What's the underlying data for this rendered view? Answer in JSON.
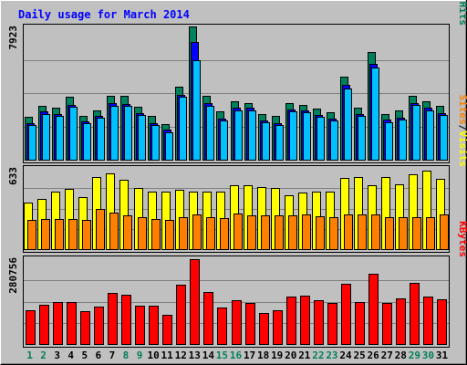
{
  "chart_data": {
    "type": "bar",
    "title": "Daily usage for March 2014",
    "categories": [
      "1",
      "2",
      "3",
      "4",
      "5",
      "6",
      "7",
      "8",
      "9",
      "10",
      "11",
      "12",
      "13",
      "14",
      "15",
      "16",
      "17",
      "18",
      "19",
      "20",
      "21",
      "22",
      "23",
      "24",
      "25",
      "26",
      "27",
      "28",
      "29",
      "30",
      "31"
    ],
    "weekend_days": [
      "1",
      "2",
      "8",
      "9",
      "15",
      "16",
      "22",
      "23",
      "29",
      "30"
    ],
    "panels": [
      {
        "id": "requests",
        "ymax_label": "7923",
        "ylim": [
          0,
          7923
        ],
        "label_parts": [
          {
            "text": "Hits",
            "color": "#00805c"
          },
          {
            "text": "/",
            "color": "#000000"
          },
          {
            "text": "Files",
            "color": "#0000ff"
          },
          {
            "text": "/",
            "color": "#000000"
          },
          {
            "text": "Pages",
            "color": "#00c0ff"
          }
        ],
        "series": [
          {
            "name": "Hits",
            "color": "#00805c",
            "values": [
              2565,
              3211,
              3092,
              3730,
              2597,
              2919,
              3807,
              3790,
              3130,
              2593,
              2108,
              4359,
              7923,
              3802,
              2881,
              3456,
              3383,
              2735,
              2581,
              3366,
              3246,
              3021,
              2844,
              4928,
              3093,
              6411,
              2706,
              2910,
              3806,
              3485,
              3207
            ]
          },
          {
            "name": "Files",
            "color": "#0000ff",
            "values": [
              2153,
              2854,
              2720,
              3267,
              2267,
              2589,
              3357,
              3321,
              2764,
              2182,
              1771,
              3878,
              6997,
              3368,
              2434,
              3094,
              3082,
              2323,
              2192,
              3004,
              2937,
              2656,
              2463,
              4453,
              2717,
              5719,
              2366,
              2502,
              3382,
              3082,
              2793
            ]
          },
          {
            "name": "Pages",
            "color": "#00c0ff",
            "values": [
              2047,
              2711,
              2589,
              3129,
              2145,
              2474,
              3212,
              3176,
              2633,
              2068,
              1654,
              3738,
              5902,
              3215,
              2322,
              2954,
              2950,
              2201,
              2063,
              2867,
              2803,
              2524,
              2344,
              4240,
              2587,
              5479,
              2245,
              2369,
              3235,
              2957,
              2648
            ]
          }
        ]
      },
      {
        "id": "visitors",
        "ymax_label": "633",
        "ylim": [
          0,
          633
        ],
        "label_parts": [
          {
            "text": "Visits",
            "color": "#ffff00"
          },
          {
            "text": "/",
            "color": "#000000"
          },
          {
            "text": "Sites",
            "color": "#ff8000"
          }
        ],
        "series": [
          {
            "name": "Visits",
            "color": "#ffff00",
            "values": [
              360,
              390,
              448,
              470,
              408,
              562,
              593,
              541,
              476,
              451,
              448,
              459,
              449,
              450,
              449,
              498,
              496,
              487,
              476,
              422,
              440,
              451,
              446,
              552,
              561,
              498,
              561,
              504,
              581,
              609,
              546
            ]
          },
          {
            "name": "Sites",
            "color": "#ff8000",
            "values": [
              230,
              234,
              238,
              232,
              225,
              310,
              284,
              264,
              250,
              236,
              229,
              250,
              270,
              250,
              245,
              280,
              264,
              266,
              260,
              262,
              268,
              253,
              247,
              271,
              272,
              268,
              251,
              249,
              252,
              246,
              268
            ]
          }
        ]
      },
      {
        "id": "kbytes",
        "ymax_label": "280756",
        "ylim": [
          0,
          280756
        ],
        "label_parts": [
          {
            "text": "KBytes",
            "color": "#ff0000"
          }
        ],
        "series": [
          {
            "name": "KBytes",
            "color": "#ff0000",
            "values": [
              113000,
              130000,
              138000,
              139000,
              108000,
              124000,
              168000,
              164000,
              128000,
              128000,
              96000,
              196000,
              280756,
              173000,
              120000,
              145000,
              136000,
              104000,
              112000,
              157000,
              161000,
              146000,
              136000,
              200000,
              140000,
              231000,
              136000,
              150000,
              203000,
              156000,
              147000
            ]
          }
        ]
      }
    ]
  }
}
